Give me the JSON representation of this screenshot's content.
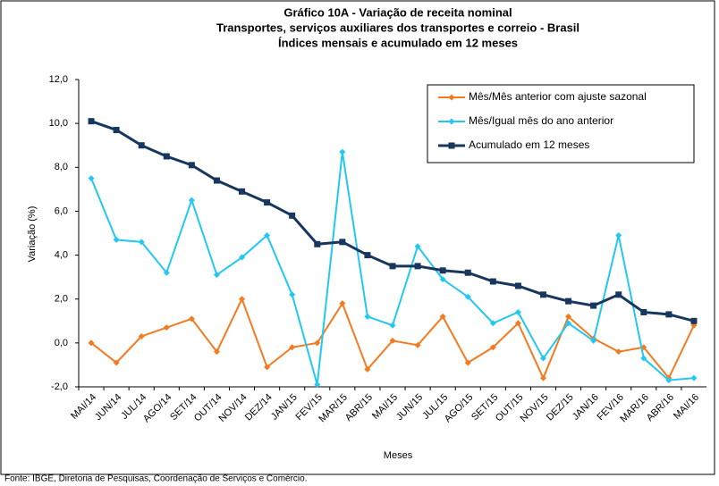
{
  "chart_data": {
    "type": "line",
    "title": "Gráfico 10A - Variação de receita nominal",
    "subtitle": [
      "Transportes, serviços auxiliares dos transportes e correio - Brasil",
      "Índices mensais e acumulado em 12 meses"
    ],
    "x_label": "Meses",
    "y_label": "Variação (%)",
    "source": "Fonte: IBGE, Diretoria de Pesquisas, Coordenação de Serviços e Comércio.",
    "categories": [
      "MAI/14",
      "JUN/14",
      "JUL/14",
      "AGO/14",
      "SET/14",
      "OUT/14",
      "NOV/14",
      "DEZ/14",
      "JAN/15",
      "FEV/15",
      "MAR/15",
      "ABR/15",
      "MAI/15",
      "JUN/15",
      "JUL/15",
      "AGO/15",
      "SET/15",
      "OUT/15",
      "NOV/15",
      "DEZ/15",
      "JAN/16",
      "FEV/16",
      "MAR/16",
      "ABR/16",
      "MAI/16"
    ],
    "series": [
      {
        "name": "Mês/Mês anterior com ajuste sazonal",
        "color": "#f47a20",
        "marker": "diamond",
        "values": [
          0.0,
          -0.9,
          0.3,
          0.7,
          1.1,
          -0.4,
          2.0,
          -1.1,
          -0.2,
          0.0,
          1.8,
          -1.2,
          0.1,
          -0.1,
          1.2,
          -0.9,
          -0.2,
          0.9,
          -1.6,
          1.2,
          0.2,
          -0.4,
          -0.2,
          -1.6,
          0.8
        ]
      },
      {
        "name": "Mês/Igual mês do ano anterior",
        "color": "#22c8f2",
        "marker": "diamond",
        "values": [
          7.5,
          4.7,
          4.6,
          3.2,
          6.5,
          3.1,
          3.9,
          4.9,
          2.2,
          -1.9,
          8.7,
          1.2,
          0.8,
          4.4,
          2.9,
          2.1,
          0.9,
          1.4,
          -0.7,
          0.9,
          0.1,
          4.9,
          -0.7,
          -1.7,
          -1.6
        ]
      },
      {
        "name": "Acumulado em 12 meses",
        "color": "#17375e",
        "marker": "square",
        "values": [
          10.1,
          9.7,
          9.0,
          8.5,
          8.1,
          7.4,
          6.9,
          6.4,
          5.8,
          4.5,
          4.6,
          4.0,
          3.5,
          3.5,
          3.3,
          3.2,
          2.8,
          2.6,
          2.2,
          1.9,
          1.7,
          2.2,
          1.4,
          1.3,
          1.0
        ]
      }
    ],
    "ylim": [
      -2,
      12
    ],
    "yticks": [
      {
        "value": -2,
        "label": "-2,0"
      },
      {
        "value": 0,
        "label": "0,0"
      },
      {
        "value": 2,
        "label": "2,0"
      },
      {
        "value": 4,
        "label": "4,0"
      },
      {
        "value": 6,
        "label": "6,0"
      },
      {
        "value": 8,
        "label": "8,0"
      },
      {
        "value": 10,
        "label": "10,0"
      },
      {
        "value": 12,
        "label": "12,0"
      }
    ],
    "legend": "top-right",
    "grid": false
  }
}
